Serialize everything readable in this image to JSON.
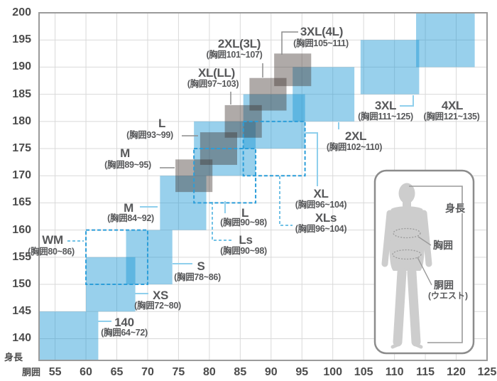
{
  "chart_data": {
    "type": "area",
    "title": "",
    "xlabel": "胴囲",
    "ylabel": "身長",
    "xlim": [
      52.4,
      125
    ],
    "ylim": [
      136,
      200
    ],
    "grid": true,
    "x_ticks": [
      55,
      60,
      65,
      70,
      75,
      80,
      85,
      90,
      95,
      100,
      105,
      110,
      115,
      120,
      125
    ],
    "y_ticks": [
      140,
      145,
      150,
      155,
      160,
      165,
      170,
      175,
      180,
      185,
      190,
      195,
      200
    ],
    "series": [
      {
        "name": "casual-sizes",
        "style": "solid-blue",
        "boxes": [
          {
            "size": "140",
            "chest": "胸囲64~72",
            "waist": [
              52.4,
              62
            ],
            "height": [
              136,
              145
            ]
          },
          {
            "size": "XS",
            "chest": "胸囲72~80",
            "waist": [
              60,
              68
            ],
            "height": [
              145,
              155
            ]
          },
          {
            "size": "S",
            "chest": "胸囲78~86",
            "waist": [
              66.5,
              74
            ],
            "height": [
              150,
              160
            ]
          },
          {
            "size": "M",
            "chest": "胸囲84~92",
            "waist": [
              72,
              79.5
            ],
            "height": [
              160,
              170
            ]
          },
          {
            "size": "L",
            "chest": "胸囲90~98",
            "waist": [
              77.5,
              87.5
            ],
            "height": [
              170,
              180
            ]
          },
          {
            "size": "XL",
            "chest": "胸囲96~104",
            "waist": [
              85.5,
              95.5
            ],
            "height": [
              175,
              185
            ]
          },
          {
            "size": "2XL",
            "chest": "胸囲102~110",
            "waist": [
              93.5,
              103.5
            ],
            "height": [
              180,
              190
            ]
          },
          {
            "size": "3XL",
            "chest": "胸囲111~125",
            "waist": [
              104.5,
              114
            ],
            "height": [
              185,
              195
            ]
          },
          {
            "size": "4XL",
            "chest": "胸囲121~135",
            "waist": [
              113.5,
              123
            ],
            "height": [
              190,
              200
            ]
          }
        ]
      },
      {
        "name": "tailored-sizes",
        "style": "solid-gray",
        "boxes": [
          {
            "size": "M",
            "chest": "胸囲89~95",
            "waist": [
              74.5,
              80.5
            ],
            "height": [
              167,
              173
            ]
          },
          {
            "size": "L",
            "chest": "胸囲93~99",
            "waist": [
              78.5,
              84.5
            ],
            "height": [
              172,
              178
            ]
          },
          {
            "size": "XL(LL)",
            "chest": "胸囲97~103",
            "waist": [
              82.5,
              88.5
            ],
            "height": [
              177,
              183
            ]
          },
          {
            "size": "2XL(3L)",
            "chest": "胸囲101~107",
            "waist": [
              86.5,
              92.5
            ],
            "height": [
              182,
              188
            ]
          },
          {
            "size": "3XL(4L)",
            "chest": "胸囲105~111",
            "waist": [
              90.5,
              96.5
            ],
            "height": [
              186.5,
              192.5
            ]
          }
        ]
      },
      {
        "name": "short-sizes",
        "style": "dashed-outline",
        "boxes": [
          {
            "size": "WM",
            "chest": "胸囲80~86",
            "waist": [
              60,
              70
            ],
            "height": [
              150,
              160
            ]
          },
          {
            "size": "Ls",
            "chest": "胸囲90~98",
            "waist": [
              77.5,
              87.5
            ],
            "height": [
              165,
              175
            ]
          },
          {
            "size": "XLs",
            "chest": "胸囲96~104",
            "waist": [
              85.5,
              95.5
            ],
            "height": [
              170,
              180
            ]
          }
        ]
      }
    ],
    "labels": [
      {
        "id": "140",
        "title": "140",
        "sub": "(胸囲64~72)",
        "cx": 175,
        "top": 445,
        "sub_cx": 175,
        "sub_top": 462,
        "leader": "blue",
        "points": [
          [
            138,
            452
          ],
          [
            157,
            452
          ]
        ]
      },
      {
        "id": "XS",
        "title": "XS",
        "sub": "(胸囲72~80)",
        "cx": 226,
        "top": 407,
        "sub_cx": 222,
        "sub_top": 424,
        "leader": "blue",
        "points": [
          [
            190,
            413
          ],
          [
            209,
            413
          ]
        ]
      },
      {
        "id": "S",
        "title": "S",
        "sub": "(胸囲78~86)",
        "cx": 283,
        "top": 366,
        "sub_cx": 278,
        "sub_top": 384,
        "leader": "blue",
        "points": [
          [
            243,
            371
          ],
          [
            271,
            371
          ]
        ]
      },
      {
        "id": "M",
        "title": "M",
        "sub": "(胸囲84~92)",
        "cx": 181,
        "top": 284,
        "sub_cx": 184,
        "sub_top": 301,
        "leader": "blue",
        "points": [
          [
            197,
            291
          ],
          [
            222,
            291
          ]
        ]
      },
      {
        "id": "WM",
        "title": "WM",
        "sub": "(胸囲80~86)",
        "cx": 74,
        "top": 329,
        "sub_cx": 72,
        "sub_top": 348,
        "leader": "dashed",
        "points": [
          [
            95,
            339
          ],
          [
            118,
            339
          ]
        ]
      },
      {
        "id": "L",
        "title": "L",
        "sub": "(胸囲90~98)",
        "cx": 345,
        "top": 291,
        "sub_cx": 343,
        "sub_top": 307,
        "leader": "blue",
        "points": [
          [
            317,
            283
          ],
          [
            317,
            300
          ]
        ]
      },
      {
        "id": "Ls",
        "title": "Ls",
        "sub": "(胸囲90~98)",
        "cx": 346,
        "top": 329,
        "sub_cx": 343,
        "sub_top": 347,
        "leader": "dashed",
        "points": [
          [
            299,
            284
          ],
          [
            299,
            338
          ],
          [
            329,
            338
          ]
        ]
      },
      {
        "id": "XL",
        "title": "XL",
        "sub": "(胸囲96~104)",
        "cx": 452,
        "top": 264,
        "sub_cx": 452,
        "sub_top": 282,
        "leader": "blue",
        "points": [
          [
            430,
            187
          ],
          [
            447,
            187
          ],
          [
            447,
            262
          ]
        ]
      },
      {
        "id": "XLs",
        "title": "XLs",
        "sub": "(胸囲96~104)",
        "cx": 459,
        "top": 298,
        "sub_cx": 452,
        "sub_top": 316,
        "leader": "dashed",
        "points": [
          [
            394,
            248
          ],
          [
            394,
            317
          ],
          [
            412,
            317
          ]
        ]
      },
      {
        "id": "2XL",
        "title": "2XL",
        "sub": "(胸囲102~110)",
        "cx": 501,
        "top": 183,
        "sub_cx": 499,
        "sub_top": 201,
        "leader": "blue",
        "points": [
          [
            477,
            172
          ],
          [
            477,
            182
          ]
        ]
      },
      {
        "id": "3XL",
        "title": "3XL",
        "sub": "(胸囲111~125)",
        "cx": 543,
        "top": 140,
        "sub_cx": 543,
        "sub_top": 158,
        "leader": "blue",
        "points": [
          [
            563,
            149
          ],
          [
            582,
            149
          ],
          [
            582,
            134
          ]
        ]
      },
      {
        "id": "4XL",
        "title": "4XL",
        "sub": "(胸囲121~135)",
        "cx": 637,
        "top": 140,
        "sub_cx": 636,
        "sub_top": 158,
        "leader": "none",
        "points": []
      },
      {
        "id": "M-tailored",
        "title": "M",
        "sub": "(胸囲89~95)",
        "cx": 176,
        "top": 207,
        "sub_cx": 180,
        "sub_top": 226,
        "leader": "gray",
        "points": [
          [
            225,
            236
          ],
          [
            246,
            236
          ]
        ]
      },
      {
        "id": "L-tailored",
        "title": "L",
        "sub": "(胸囲93~99)",
        "cx": 228,
        "top": 165,
        "sub_cx": 211,
        "sub_top": 184,
        "leader": "gray",
        "points": [
          [
            256,
            191
          ],
          [
            279,
            191
          ]
        ]
      },
      {
        "id": "XL(LL)",
        "title": "XL(LL)",
        "sub": "(胸囲97~103)",
        "cx": 305,
        "top": 94,
        "sub_cx": 300,
        "sub_top": 112,
        "leader": "gray",
        "points": [
          [
            325,
            129
          ],
          [
            325,
            147
          ]
        ]
      },
      {
        "id": "2XL(3L)",
        "title": "2XL(3L)",
        "sub": "(胸囲101~107)",
        "cx": 337,
        "top": 53,
        "sub_cx": 330,
        "sub_top": 71,
        "leader": "gray",
        "points": [
          [
            370,
            89
          ],
          [
            370,
            109
          ]
        ]
      },
      {
        "id": "3XL(4L)",
        "title": "3XL(4L)",
        "sub": "(胸囲105~111)",
        "cx": 453,
        "top": 36,
        "sub_cx": 452,
        "sub_top": 55,
        "leader": "gray",
        "points": [
          [
            420,
            45
          ],
          [
            397,
            45
          ],
          [
            397,
            77
          ]
        ]
      }
    ]
  },
  "axis": {
    "x_title": "胴囲",
    "y_title": "身長"
  },
  "figure_panel": {
    "height_label": "身長",
    "chest_label": "胸囲",
    "waist_label": "胴囲",
    "waist_sub_label": "(ウエスト)"
  },
  "colors": {
    "box_blue": "rgba(26,150,212,0.45)",
    "box_gray": "rgba(64,52,48,0.42)",
    "dashed_stroke": "#2c9ed9",
    "leader_blue": "#8fcfec",
    "leader_dashed": "#45aede",
    "leader_gray": "#8c8c8c",
    "grid": "#d9d9d9",
    "plot_border": "#9b9b9b",
    "text": "#57585a",
    "tick_text": "#4c4c4c",
    "silhouette": "#cdcdcd",
    "panel_border": "#8c8c8c",
    "measure_line": "#9a9a9a"
  }
}
